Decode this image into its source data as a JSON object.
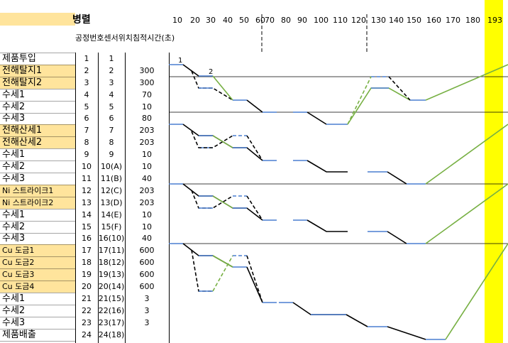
{
  "header": {
    "title": "병렬",
    "col_labels": "공정번호센서위치침적시간(초)"
  },
  "axis_ticks": [
    "10",
    "20",
    "30",
    "40",
    "50",
    "60",
    "70",
    "80",
    "90",
    "100",
    "110",
    "120",
    "130",
    "140",
    "150",
    "160",
    "170",
    "180",
    "193"
  ],
  "rows": [
    {
      "name": "제품투입",
      "num": "1",
      "pos": "1",
      "time": "",
      "hl": false
    },
    {
      "name": "전해탈지1",
      "num": "2",
      "pos": "2",
      "time": "300",
      "hl": true
    },
    {
      "name": "전해탈지2",
      "num": "3",
      "pos": "3",
      "time": "300",
      "hl": true
    },
    {
      "name": "수세1",
      "num": "4",
      "pos": "4",
      "time": "70",
      "hl": false
    },
    {
      "name": "수세2",
      "num": "5",
      "pos": "5",
      "time": "10",
      "hl": false
    },
    {
      "name": "수세3",
      "num": "6",
      "pos": "6",
      "time": "80",
      "hl": false
    },
    {
      "name": "전해산세1",
      "num": "7",
      "pos": "7",
      "time": "203",
      "hl": true
    },
    {
      "name": "전해산세2",
      "num": "8",
      "pos": "8",
      "time": "203",
      "hl": true
    },
    {
      "name": "수세1",
      "num": "9",
      "pos": "9",
      "time": "10",
      "hl": false
    },
    {
      "name": "수세2",
      "num": "10",
      "pos": "10(A)",
      "time": "10",
      "hl": false
    },
    {
      "name": "수세3",
      "num": "11",
      "pos": "11(B)",
      "time": "40",
      "hl": false
    },
    {
      "name": "Ni 스트라이크1",
      "num": "12",
      "pos": "12(C)",
      "time": "203",
      "hl": true
    },
    {
      "name": "Ni 스트라이크2",
      "num": "13",
      "pos": "13(D)",
      "time": "203",
      "hl": true
    },
    {
      "name": "수세1",
      "num": "14",
      "pos": "14(E)",
      "time": "10",
      "hl": false
    },
    {
      "name": "수세2",
      "num": "15",
      "pos": "15(F)",
      "time": "10",
      "hl": false
    },
    {
      "name": "수세3",
      "num": "16",
      "pos": "16(10)",
      "time": "40",
      "hl": false
    },
    {
      "name": "Cu 도금1",
      "num": "17",
      "pos": "17(11)",
      "time": "600",
      "hl": true
    },
    {
      "name": "Cu 도금2",
      "num": "18",
      "pos": "18(12)",
      "time": "600",
      "hl": true
    },
    {
      "name": "Cu 도금3",
      "num": "19",
      "pos": "19(13)",
      "time": "600",
      "hl": true
    },
    {
      "name": "Cu 도금4",
      "num": "20",
      "pos": "20(14)",
      "time": "600",
      "hl": true
    },
    {
      "name": "수세1",
      "num": "21",
      "pos": "21(15)",
      "time": "3",
      "hl": false
    },
    {
      "name": "수세2",
      "num": "22",
      "pos": "22(16)",
      "time": "3",
      "hl": false
    },
    {
      "name": "수세3",
      "num": "23",
      "pos": "23(17)",
      "time": "3",
      "hl": false
    },
    {
      "name": "제품배출",
      "num": "24",
      "pos": "24(18)",
      "time": "",
      "hl": false
    }
  ],
  "diagram_labels": {
    "start_marker_1": "1",
    "start_marker_2": "2"
  },
  "colors": {
    "highlight": "#ffe49c",
    "yellow": "#ffff00",
    "blue": "#4a7fd0",
    "green": "#77b043",
    "black": "#000000"
  }
}
